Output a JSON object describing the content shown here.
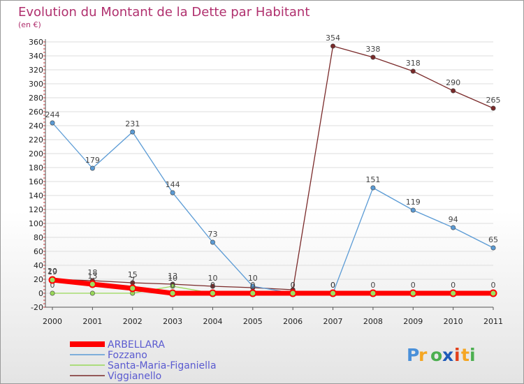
{
  "chart_data": {
    "type": "line",
    "title": "Evolution du Montant de la Dette par Habitant",
    "subtitle": "(en €)",
    "x": [
      "2000",
      "2001",
      "2002",
      "2003",
      "2004",
      "2005",
      "2006",
      "2007",
      "2008",
      "2009",
      "2010",
      "2011"
    ],
    "y_ticks": [
      "-20",
      "0",
      "20",
      "40",
      "60",
      "80",
      "100",
      "120",
      "140",
      "160",
      "180",
      "200",
      "220",
      "240",
      "260",
      "280",
      "300",
      "320",
      "340",
      "360"
    ],
    "ylim": [
      -20,
      360
    ],
    "series": [
      {
        "name": "Viggianello",
        "color": "#7a2a2a",
        "values": [
          20,
          18,
          15,
          13,
          10,
          8,
          5,
          354,
          338,
          318,
          290,
          265
        ],
        "labels": [
          "20",
          "18",
          "15",
          "13",
          "10",
          "",
          "",
          "354",
          "338",
          "318",
          "290",
          "265"
        ]
      },
      {
        "name": "Santa-Maria-Figaniella",
        "color": "#99d85a",
        "values": [
          0,
          0,
          0,
          10,
          0,
          0,
          0,
          0,
          0,
          0,
          0,
          0
        ],
        "labels": [
          "0",
          "",
          "",
          "10",
          "",
          "",
          "",
          "",
          "",
          "",
          "",
          ""
        ]
      },
      {
        "name": "Fozzano",
        "color": "#5b9bd5",
        "values": [
          244,
          179,
          231,
          144,
          73,
          10,
          0,
          0,
          151,
          119,
          94,
          65
        ],
        "labels": [
          "244",
          "179",
          "231",
          "144",
          "73",
          "10",
          "0",
          "0",
          "151",
          "119",
          "94",
          "65"
        ]
      },
      {
        "name": "ARBELLARA",
        "color": "#ff0000",
        "values": [
          19,
          13,
          7,
          0,
          0,
          0,
          0,
          0,
          0,
          0,
          0,
          0
        ],
        "labels": [
          "19",
          "13",
          "7",
          "0",
          "0",
          "0",
          "0",
          "0",
          "0",
          "0",
          "0",
          "0"
        ]
      }
    ],
    "legend": [
      "ARBELLARA",
      "Fozzano",
      "Santa-Maria-Figaniella",
      "Viggianello"
    ],
    "legend_position": "bottom-left"
  },
  "logo": {
    "text": "Proxiti",
    "letters": [
      "P",
      "r",
      "o",
      "x",
      "i",
      "t",
      "i"
    ],
    "colors": [
      "#4a90d9",
      "#f5a623",
      "#4caf50",
      "#1e5bb8",
      "#e2401b",
      "#f5a623",
      "#4caf50"
    ]
  }
}
